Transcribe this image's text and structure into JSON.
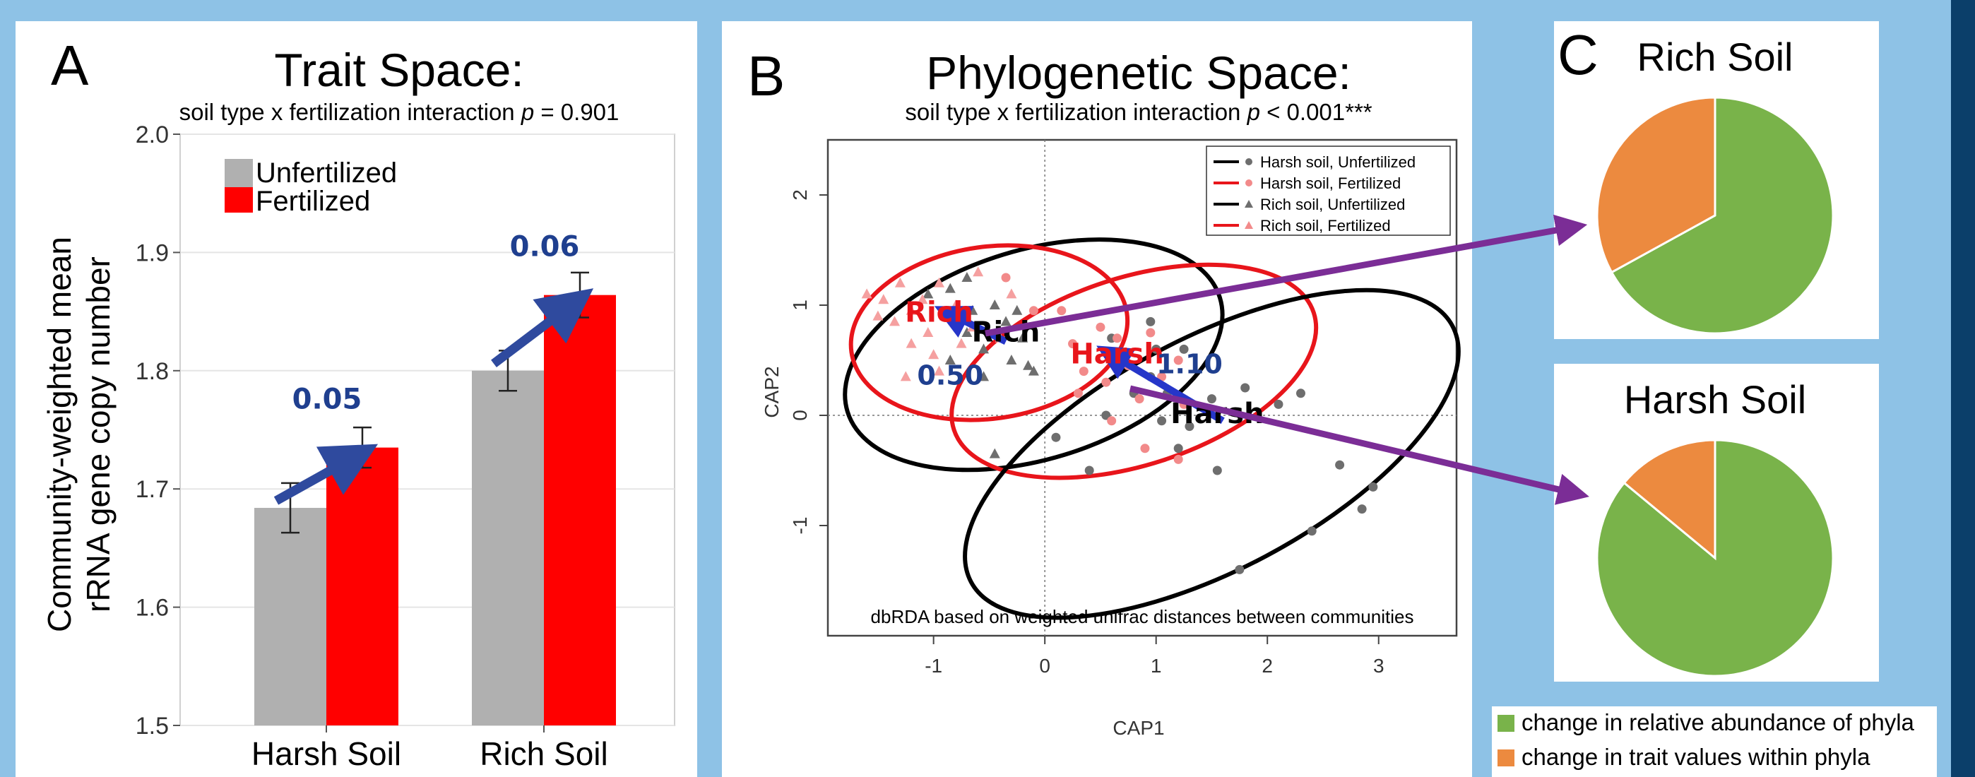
{
  "colors": {
    "background": "#8ec2e6",
    "panel": "#ffffff",
    "unfertilized_bar": "#b0b0b0",
    "fertilized_bar": "#ff0000",
    "arrow_blue": "#2f4a9e",
    "label_blue": "#1f3f8f",
    "purple": "#7b2d96",
    "green": "#79b34a",
    "orange": "#ec8a3f",
    "ellipse_black": "#000000",
    "ellipse_red": "#e8151b"
  },
  "panel_a": {
    "letter": "A",
    "title": "Trait Space:",
    "subtitle_prefix": "soil type x fertilization interaction",
    "subtitle_p": "p",
    "subtitle_value": " = 0.901",
    "ylabel_line1": "Community-weighted mean",
    "ylabel_line2": "rRNA gene copy number",
    "legend": [
      "Unfertilized",
      "Fertilized"
    ]
  },
  "panel_b": {
    "letter": "B",
    "title": "Phylogenetic Space:",
    "subtitle_prefix": "soil type x fertilization interaction",
    "subtitle_p": "p",
    "subtitle_value": " < 0.001***",
    "xlabel": "CAP1",
    "ylabel": "CAP2",
    "footnote": "dbRDA based on weighted unifrac distances between communities",
    "legend": [
      {
        "label": "Harsh soil, Unfertilized",
        "color": "#000000",
        "marker": "circle"
      },
      {
        "label": "Harsh soil, Fertilized",
        "color": "#e8151b",
        "marker": "circle"
      },
      {
        "label": "Rich soil, Unfertilized",
        "color": "#000000",
        "marker": "triangle"
      },
      {
        "label": "Rich soil, Fertilized",
        "color": "#e8151b",
        "marker": "triangle"
      }
    ]
  },
  "panel_c": {
    "letter": "C",
    "pies": [
      {
        "title": "Rich Soil",
        "slices": [
          {
            "name": "change in relative abundance of phyla",
            "value": 0.67
          },
          {
            "name": "change in trait values within phyla",
            "value": 0.33
          }
        ]
      },
      {
        "title": "Harsh Soil",
        "slices": [
          {
            "name": "change in relative abundance of phyla",
            "value": 0.86
          },
          {
            "name": "change in trait values within phyla",
            "value": 0.14
          }
        ]
      }
    ],
    "legend": [
      "change in relative abundance of phyla",
      "change in trait values within phyla"
    ]
  },
  "chart_data": [
    {
      "type": "bar",
      "categories": [
        "Harsh Soil",
        "Rich Soil"
      ],
      "series": [
        {
          "name": "Unfertilized",
          "values": [
            1.684,
            1.8
          ],
          "errors": [
            0.021,
            0.017
          ]
        },
        {
          "name": "Fertilized",
          "values": [
            1.735,
            1.864
          ],
          "errors": [
            0.017,
            0.019
          ]
        }
      ],
      "annotations": [
        "0.05",
        "0.06"
      ],
      "ylim": [
        1.5,
        2.0
      ],
      "yticks": [
        "1.5",
        "1.6",
        "1.7",
        "1.8",
        "1.9",
        "2.0"
      ],
      "grid": true
    },
    {
      "type": "scatter",
      "xticks": [
        "-1",
        "0",
        "1",
        "2",
        "3"
      ],
      "yticks": [
        "-1",
        "0",
        "1",
        "2"
      ],
      "xlim": [
        -1.95,
        3.7
      ],
      "ylim": [
        -2.0,
        2.5
      ],
      "centroid_labels": [
        {
          "text": "Rich",
          "x": -0.35,
          "y": 0.67,
          "color": "#000000"
        },
        {
          "text": "Rich",
          "x": -0.95,
          "y": 0.85,
          "color": "#e8151b"
        },
        {
          "text": "Harsh",
          "x": 1.55,
          "y": -0.07,
          "color": "#000000"
        },
        {
          "text": "Harsh",
          "x": 0.65,
          "y": 0.47,
          "color": "#e8151b"
        }
      ],
      "distance_labels": [
        {
          "text": "0.50",
          "x": -0.85,
          "y": 0.28
        },
        {
          "text": "1.10",
          "x": 1.3,
          "y": 0.38
        }
      ],
      "arrows": [
        {
          "from": [
            -0.35,
            0.67
          ],
          "to": [
            -0.85,
            0.92
          ]
        },
        {
          "from": [
            1.6,
            -0.05
          ],
          "to": [
            0.6,
            0.55
          ]
        }
      ],
      "ellipses": [
        {
          "group": "Rich soil, Unfertilized",
          "cx": -0.1,
          "cy": 0.55,
          "rx": 1.75,
          "ry": 0.95,
          "angle": -17,
          "color": "#000000"
        },
        {
          "group": "Rich soil, Fertilized",
          "cx": -0.5,
          "cy": 0.75,
          "rx": 1.25,
          "ry": 0.78,
          "angle": -8,
          "color": "#e8151b"
        },
        {
          "group": "Harsh soil, Fertilized",
          "cx": 0.8,
          "cy": 0.4,
          "rx": 1.7,
          "ry": 0.85,
          "angle": -18,
          "color": "#e8151b"
        },
        {
          "group": "Harsh soil, Unfertilized",
          "cx": 1.5,
          "cy": -0.35,
          "rx": 2.45,
          "ry": 1.05,
          "angle": -28,
          "color": "#000000"
        }
      ],
      "points": {
        "Harsh soil, Unfertilized": [
          [
            0.6,
            0.7
          ],
          [
            0.7,
            0.5
          ],
          [
            0.8,
            0.2
          ],
          [
            0.95,
            0.85
          ],
          [
            0.95,
            0.35
          ],
          [
            1.0,
            0.6
          ],
          [
            1.05,
            -0.05
          ],
          [
            1.1,
            0.2
          ],
          [
            1.2,
            -0.3
          ],
          [
            1.25,
            0.6
          ],
          [
            1.3,
            -0.1
          ],
          [
            1.5,
            0.15
          ],
          [
            1.8,
            0.25
          ],
          [
            2.1,
            0.1
          ],
          [
            2.3,
            0.2
          ],
          [
            2.65,
            -0.45
          ],
          [
            2.85,
            -0.85
          ],
          [
            2.95,
            -0.65
          ],
          [
            2.4,
            -1.05
          ],
          [
            1.75,
            -1.4
          ],
          [
            0.4,
            -0.5
          ],
          [
            0.1,
            -0.2
          ],
          [
            0.55,
            0.0
          ],
          [
            1.55,
            -0.5
          ]
        ],
        "Harsh soil, Fertilized": [
          [
            -0.35,
            1.25
          ],
          [
            -0.1,
            0.95
          ],
          [
            0.15,
            0.95
          ],
          [
            0.25,
            0.65
          ],
          [
            0.35,
            0.4
          ],
          [
            0.5,
            0.8
          ],
          [
            0.55,
            0.3
          ],
          [
            0.65,
            0.7
          ],
          [
            0.75,
            0.45
          ],
          [
            0.85,
            0.15
          ],
          [
            0.95,
            0.75
          ],
          [
            1.05,
            0.35
          ],
          [
            1.2,
            0.5
          ],
          [
            1.25,
            0.1
          ],
          [
            0.3,
            0.2
          ],
          [
            0.6,
            -0.05
          ],
          [
            0.9,
            -0.3
          ],
          [
            1.2,
            -0.4
          ]
        ],
        "Rich soil, Unfertilized": [
          [
            -1.05,
            1.1
          ],
          [
            -0.85,
            1.15
          ],
          [
            -0.7,
            1.25
          ],
          [
            -0.65,
            0.95
          ],
          [
            -0.55,
            0.6
          ],
          [
            -0.45,
            1.0
          ],
          [
            -0.35,
            0.85
          ],
          [
            -0.25,
            0.95
          ],
          [
            -0.2,
            0.7
          ],
          [
            -0.15,
            0.45
          ],
          [
            -0.3,
            0.5
          ],
          [
            -0.85,
            0.5
          ],
          [
            -0.55,
            0.35
          ],
          [
            -0.1,
            0.4
          ],
          [
            -0.45,
            -0.35
          ],
          [
            -0.7,
            0.75
          ]
        ],
        "Rich soil, Fertilized": [
          [
            -1.6,
            1.1
          ],
          [
            -1.45,
            1.05
          ],
          [
            -1.3,
            1.2
          ],
          [
            -1.2,
            0.95
          ],
          [
            -1.1,
            1.05
          ],
          [
            -1.05,
            0.75
          ],
          [
            -0.95,
            1.2
          ],
          [
            -0.9,
            0.9
          ],
          [
            -0.8,
            1.0
          ],
          [
            -0.75,
            0.65
          ],
          [
            -1.0,
            0.55
          ],
          [
            -1.2,
            0.65
          ],
          [
            -1.35,
            0.85
          ],
          [
            -0.65,
            0.8
          ],
          [
            -0.6,
            1.3
          ],
          [
            -0.4,
            0.7
          ],
          [
            -0.3,
            1.1
          ],
          [
            -1.5,
            0.9
          ],
          [
            -1.25,
            0.35
          ],
          [
            -0.95,
            0.4
          ]
        ]
      }
    },
    {
      "type": "pie",
      "title": "Rich Soil",
      "categories": [
        "change in relative abundance of phyla",
        "change in trait values within phyla"
      ],
      "values": [
        0.67,
        0.33
      ]
    },
    {
      "type": "pie",
      "title": "Harsh Soil",
      "categories": [
        "change in relative abundance of phyla",
        "change in trait values within phyla"
      ],
      "values": [
        0.86,
        0.14
      ]
    }
  ]
}
